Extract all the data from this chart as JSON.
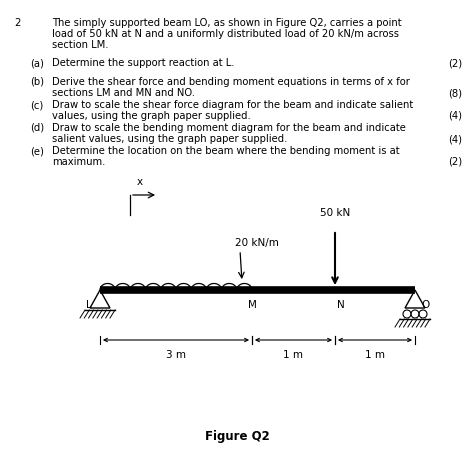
{
  "background_color": "#ffffff",
  "question_number": "2",
  "main_text_line1": "The simply supported beam LO, as shown in Figure Q2, carries a point",
  "main_text_line2": "load of 50 kN at N and a uniformly distributed load of 20 kN/m across",
  "main_text_line3": "section LM.",
  "parts": [
    {
      "label": "(a)",
      "text_line1": "Determine the support reaction at L.",
      "text_line2": "",
      "marks": "(2)"
    },
    {
      "label": "(b)",
      "text_line1": "Derive the shear force and bending moment equations in terms of x for",
      "text_line2": "sections LM and MN and NO.",
      "marks": "(8)"
    },
    {
      "label": "(c)",
      "text_line1": "Draw to scale the shear force diagram for the beam and indicate salient",
      "text_line2": "values, using the graph paper supplied.",
      "marks": "(4)"
    },
    {
      "label": "(d)",
      "text_line1": "Draw to scale the bending moment diagram for the beam and indicate",
      "text_line2": "salient values, using the graph paper supplied.",
      "marks": "(4)"
    },
    {
      "label": "(e)",
      "text_line1": "Determine the location on the beam where the bending moment is at",
      "text_line2": "maximum.",
      "marks": "(2)"
    }
  ],
  "figure_label": "Figure Q2",
  "udl_label": "20 kN/m",
  "point_load_label": "50 kN",
  "dim_3m": "3 m",
  "dim_1m_1": "1 m",
  "dim_1m_2": "1 m",
  "x_label": "x",
  "L_label": "L",
  "M_label": "M",
  "N_label": "N",
  "O_label": "O"
}
